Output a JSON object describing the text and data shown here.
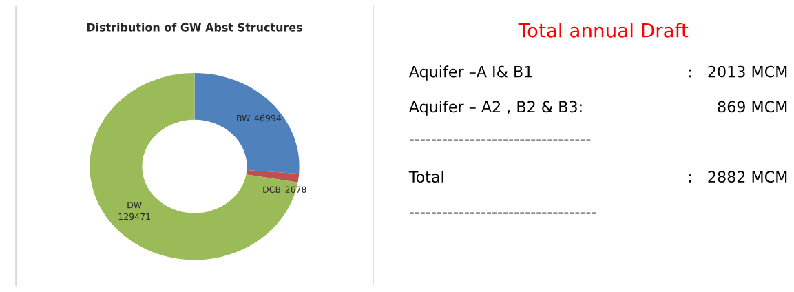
{
  "chart_data": [
    {
      "type": "donut",
      "title": "Distribution of GW Abst Structures",
      "categories": [
        "BW",
        "DCB",
        "DW"
      ],
      "values": [
        46994,
        2678,
        129471
      ],
      "colors": [
        "#4f81bd",
        "#c0504d",
        "#9bbb59"
      ],
      "data_labels": true
    },
    {
      "type": "other",
      "title": "Total annual Draft",
      "annotations": [
        "Aquifer –A I& B1",
        ":   2013 MCM",
        "Aquifer – A2 , B2 & B3:",
        "869 MCM",
        "---------------------------------",
        "Total",
        ":   2882 MCM",
        "----------------------------------"
      ]
    }
  ]
}
